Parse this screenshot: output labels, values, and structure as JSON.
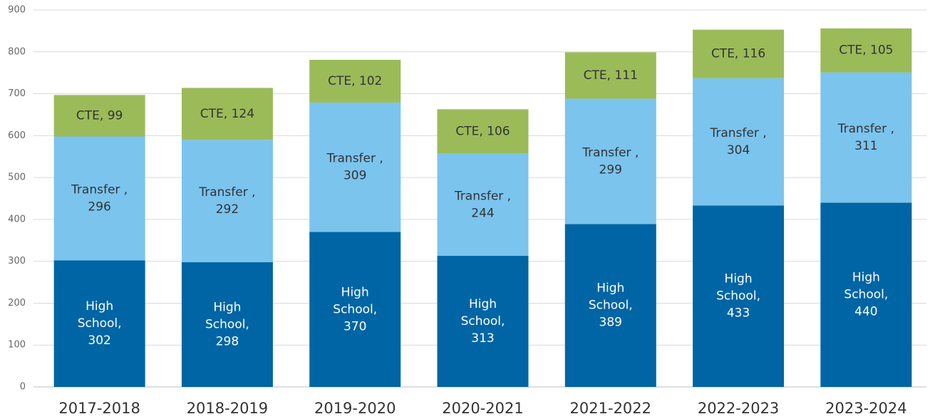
{
  "chart_data": {
    "type": "stacked_bar",
    "categories": [
      "2017-2018",
      "2018-2019",
      "2019-2020",
      "2020-2021",
      "2021-2022",
      "2022-2023",
      "2023-2024"
    ],
    "series": [
      {
        "color": "#0065a4",
        "label_color": "#ffffff",
        "values": [
          302,
          298,
          370,
          313,
          389,
          433,
          440
        ],
        "value_labels": [
          "High School, 302",
          "High School, 298",
          "High School, 370",
          "High School, 313",
          "High School, 389",
          "High School, 433",
          "High School, 440"
        ]
      },
      {
        "color": "#7bc4ee",
        "label_color": "#333333",
        "values": [
          296,
          292,
          309,
          244,
          299,
          304,
          311
        ],
        "value_labels": [
          "Transfer , 296",
          "Transfer , 292",
          "Transfer , 309",
          "Transfer , 244",
          "Transfer , 299",
          "Transfer , 304",
          "Transfer , 311"
        ]
      },
      {
        "color": "#9bbb59",
        "label_color": "#333333",
        "values": [
          99,
          124,
          102,
          106,
          111,
          116,
          105
        ],
        "value_labels": [
          "CTE, 99",
          "CTE, 124",
          "CTE, 102",
          "CTE, 106",
          "CTE, 111",
          "CTE, 116",
          "CTE, 105"
        ]
      }
    ],
    "ylim": [
      0,
      900
    ],
    "yticks": [
      0,
      100,
      200,
      300,
      400,
      500,
      600,
      700,
      800,
      900
    ],
    "grid": true
  }
}
